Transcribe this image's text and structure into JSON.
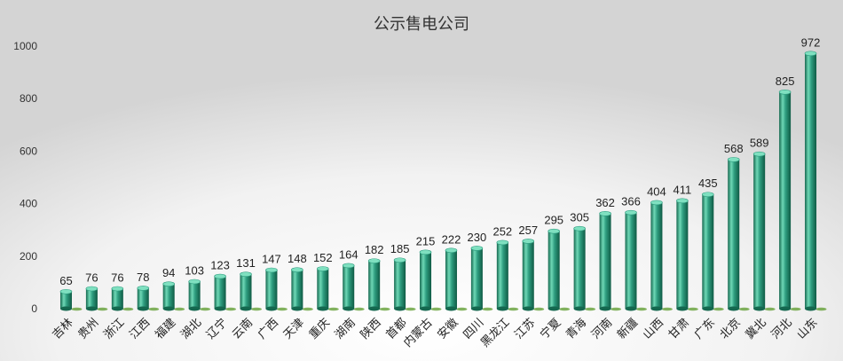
{
  "chart_data": {
    "type": "bar",
    "title": "公示售电公司",
    "categories": [
      "吉林",
      "贵州",
      "浙江",
      "江西",
      "福建",
      "湖北",
      "辽宁",
      "云南",
      "广西",
      "天津",
      "重庆",
      "湖南",
      "陕西",
      "首都",
      "内蒙古",
      "安徽",
      "四川",
      "黑龙江",
      "江苏",
      "宁夏",
      "青海",
      "河南",
      "新疆",
      "山西",
      "甘肃",
      "广东",
      "北京",
      "冀北",
      "河北",
      "山东"
    ],
    "values": [
      65,
      76,
      76,
      78,
      94,
      103,
      123,
      131,
      147,
      148,
      152,
      164,
      182,
      185,
      215,
      222,
      230,
      252,
      257,
      295,
      305,
      362,
      366,
      404,
      411,
      435,
      568,
      589,
      825,
      972
    ],
    "ylim": [
      0,
      1000
    ],
    "yticks": [
      0,
      200,
      400,
      600,
      800,
      1000
    ],
    "grid": false,
    "legend": "none",
    "colors": {
      "bar_main": "#2f9e80",
      "bar_light": "#6fd8b6",
      "bar_dark": "#15684f",
      "bar_top": "#7fe0c0",
      "shadow": "#5a9a2a"
    }
  }
}
